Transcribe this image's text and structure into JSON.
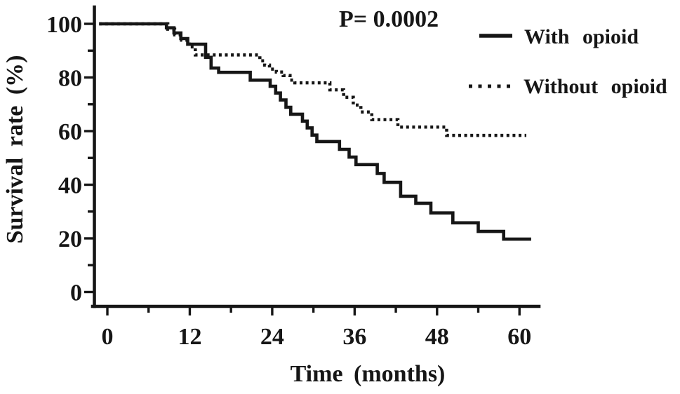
{
  "figure": {
    "background": "#ffffff",
    "ink_color": "#161616"
  },
  "chart_data": {
    "type": "line",
    "chart_style": "kaplan-meier-step-survival",
    "title": "",
    "p_value_annotation": "P= 0.0002",
    "xlabel": "Time (months)",
    "ylabel": "Survival rate (%)",
    "xlim": [
      0,
      63
    ],
    "ylim": [
      0,
      100
    ],
    "x_ticks": [
      0,
      12,
      24,
      36,
      48,
      60
    ],
    "x_minor_ticks": [
      6,
      18,
      30,
      42,
      54
    ],
    "y_ticks": [
      0,
      20,
      40,
      60,
      80,
      100
    ],
    "y_minor_ticks": [
      10,
      30,
      50,
      70,
      90
    ],
    "grid": false,
    "legend_position": "upper-right",
    "series": [
      {
        "name": "With opioid",
        "line_style": "solid",
        "color": "#161616",
        "initial_value": 100,
        "start_time": -1.2,
        "end_time": 61.7,
        "steps": [
          [
            8.6,
            98.5
          ],
          [
            9.7,
            96.6
          ],
          [
            10.7,
            94.5
          ],
          [
            11.7,
            92.4
          ],
          [
            14.3,
            87.5
          ],
          [
            15.1,
            83.5
          ],
          [
            16.2,
            81.9
          ],
          [
            20.8,
            79.0
          ],
          [
            23.7,
            76.7
          ],
          [
            24.5,
            74.2
          ],
          [
            25.2,
            71.6
          ],
          [
            26.0,
            68.9
          ],
          [
            26.7,
            66.3
          ],
          [
            28.4,
            63.7
          ],
          [
            29.1,
            61.2
          ],
          [
            29.8,
            58.5
          ],
          [
            30.5,
            56.1
          ],
          [
            33.8,
            53.2
          ],
          [
            35.2,
            50.3
          ],
          [
            36.2,
            47.5
          ],
          [
            39.3,
            44.2
          ],
          [
            40.3,
            40.9
          ],
          [
            42.7,
            35.7
          ],
          [
            44.9,
            33.1
          ],
          [
            47.1,
            29.5
          ],
          [
            50.3,
            25.8
          ],
          [
            54.0,
            22.6
          ],
          [
            57.7,
            19.7
          ]
        ]
      },
      {
        "name": "Without opioid",
        "line_style": "dotted",
        "color": "#161616",
        "initial_value": 100,
        "start_time": -1.2,
        "end_time": 61.0,
        "steps": [
          [
            8.8,
            98.0
          ],
          [
            9.8,
            95.9
          ],
          [
            10.8,
            93.9
          ],
          [
            11.9,
            91.4
          ],
          [
            12.8,
            88.4
          ],
          [
            22.2,
            86.2
          ],
          [
            22.9,
            84.6
          ],
          [
            23.6,
            83.1
          ],
          [
            24.6,
            82.0
          ],
          [
            25.6,
            80.7
          ],
          [
            26.6,
            79.0
          ],
          [
            27.3,
            78.0
          ],
          [
            32.4,
            75.4
          ],
          [
            34.4,
            72.6
          ],
          [
            35.8,
            69.7
          ],
          [
            36.9,
            67.1
          ],
          [
            38.5,
            64.3
          ],
          [
            42.3,
            61.5
          ],
          [
            49.4,
            58.4
          ]
        ]
      }
    ]
  }
}
